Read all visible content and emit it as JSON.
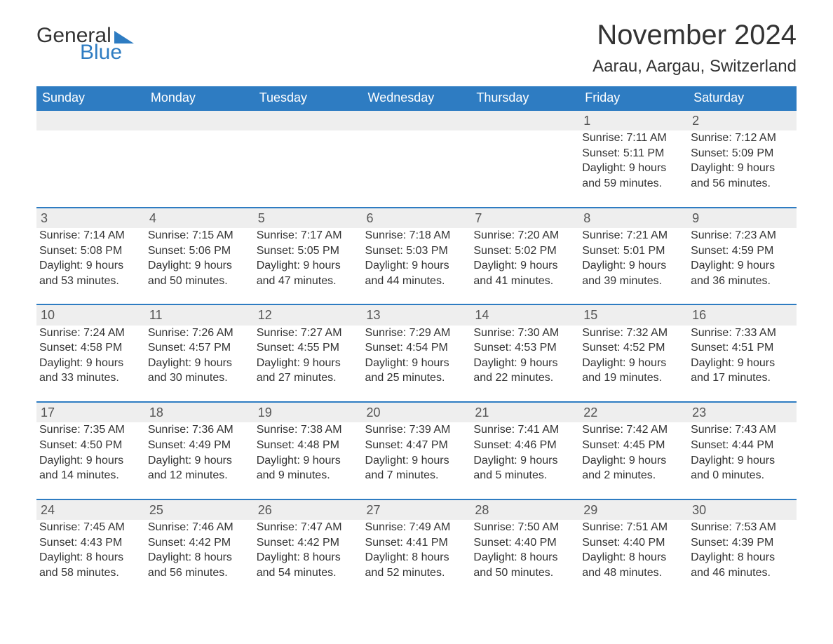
{
  "brand": {
    "part1": "General",
    "part2": "Blue",
    "brand_color": "#2e7cc2"
  },
  "title": "November 2024",
  "location": "Aarau, Aargau, Switzerland",
  "colors": {
    "header_bg": "#2e7cc2",
    "header_text": "#ffffff",
    "daynum_bg": "#eeeeee",
    "page_bg": "#ffffff",
    "text": "#333333",
    "row_border": "#2e7cc2"
  },
  "day_headers": [
    "Sunday",
    "Monday",
    "Tuesday",
    "Wednesday",
    "Thursday",
    "Friday",
    "Saturday"
  ],
  "weeks": [
    [
      null,
      null,
      null,
      null,
      null,
      {
        "n": "1",
        "sunrise": "Sunrise: 7:11 AM",
        "sunset": "Sunset: 5:11 PM",
        "d1": "Daylight: 9 hours",
        "d2": "and 59 minutes."
      },
      {
        "n": "2",
        "sunrise": "Sunrise: 7:12 AM",
        "sunset": "Sunset: 5:09 PM",
        "d1": "Daylight: 9 hours",
        "d2": "and 56 minutes."
      }
    ],
    [
      {
        "n": "3",
        "sunrise": "Sunrise: 7:14 AM",
        "sunset": "Sunset: 5:08 PM",
        "d1": "Daylight: 9 hours",
        "d2": "and 53 minutes."
      },
      {
        "n": "4",
        "sunrise": "Sunrise: 7:15 AM",
        "sunset": "Sunset: 5:06 PM",
        "d1": "Daylight: 9 hours",
        "d2": "and 50 minutes."
      },
      {
        "n": "5",
        "sunrise": "Sunrise: 7:17 AM",
        "sunset": "Sunset: 5:05 PM",
        "d1": "Daylight: 9 hours",
        "d2": "and 47 minutes."
      },
      {
        "n": "6",
        "sunrise": "Sunrise: 7:18 AM",
        "sunset": "Sunset: 5:03 PM",
        "d1": "Daylight: 9 hours",
        "d2": "and 44 minutes."
      },
      {
        "n": "7",
        "sunrise": "Sunrise: 7:20 AM",
        "sunset": "Sunset: 5:02 PM",
        "d1": "Daylight: 9 hours",
        "d2": "and 41 minutes."
      },
      {
        "n": "8",
        "sunrise": "Sunrise: 7:21 AM",
        "sunset": "Sunset: 5:01 PM",
        "d1": "Daylight: 9 hours",
        "d2": "and 39 minutes."
      },
      {
        "n": "9",
        "sunrise": "Sunrise: 7:23 AM",
        "sunset": "Sunset: 4:59 PM",
        "d1": "Daylight: 9 hours",
        "d2": "and 36 minutes."
      }
    ],
    [
      {
        "n": "10",
        "sunrise": "Sunrise: 7:24 AM",
        "sunset": "Sunset: 4:58 PM",
        "d1": "Daylight: 9 hours",
        "d2": "and 33 minutes."
      },
      {
        "n": "11",
        "sunrise": "Sunrise: 7:26 AM",
        "sunset": "Sunset: 4:57 PM",
        "d1": "Daylight: 9 hours",
        "d2": "and 30 minutes."
      },
      {
        "n": "12",
        "sunrise": "Sunrise: 7:27 AM",
        "sunset": "Sunset: 4:55 PM",
        "d1": "Daylight: 9 hours",
        "d2": "and 27 minutes."
      },
      {
        "n": "13",
        "sunrise": "Sunrise: 7:29 AM",
        "sunset": "Sunset: 4:54 PM",
        "d1": "Daylight: 9 hours",
        "d2": "and 25 minutes."
      },
      {
        "n": "14",
        "sunrise": "Sunrise: 7:30 AM",
        "sunset": "Sunset: 4:53 PM",
        "d1": "Daylight: 9 hours",
        "d2": "and 22 minutes."
      },
      {
        "n": "15",
        "sunrise": "Sunrise: 7:32 AM",
        "sunset": "Sunset: 4:52 PM",
        "d1": "Daylight: 9 hours",
        "d2": "and 19 minutes."
      },
      {
        "n": "16",
        "sunrise": "Sunrise: 7:33 AM",
        "sunset": "Sunset: 4:51 PM",
        "d1": "Daylight: 9 hours",
        "d2": "and 17 minutes."
      }
    ],
    [
      {
        "n": "17",
        "sunrise": "Sunrise: 7:35 AM",
        "sunset": "Sunset: 4:50 PM",
        "d1": "Daylight: 9 hours",
        "d2": "and 14 minutes."
      },
      {
        "n": "18",
        "sunrise": "Sunrise: 7:36 AM",
        "sunset": "Sunset: 4:49 PM",
        "d1": "Daylight: 9 hours",
        "d2": "and 12 minutes."
      },
      {
        "n": "19",
        "sunrise": "Sunrise: 7:38 AM",
        "sunset": "Sunset: 4:48 PM",
        "d1": "Daylight: 9 hours",
        "d2": "and 9 minutes."
      },
      {
        "n": "20",
        "sunrise": "Sunrise: 7:39 AM",
        "sunset": "Sunset: 4:47 PM",
        "d1": "Daylight: 9 hours",
        "d2": "and 7 minutes."
      },
      {
        "n": "21",
        "sunrise": "Sunrise: 7:41 AM",
        "sunset": "Sunset: 4:46 PM",
        "d1": "Daylight: 9 hours",
        "d2": "and 5 minutes."
      },
      {
        "n": "22",
        "sunrise": "Sunrise: 7:42 AM",
        "sunset": "Sunset: 4:45 PM",
        "d1": "Daylight: 9 hours",
        "d2": "and 2 minutes."
      },
      {
        "n": "23",
        "sunrise": "Sunrise: 7:43 AM",
        "sunset": "Sunset: 4:44 PM",
        "d1": "Daylight: 9 hours",
        "d2": "and 0 minutes."
      }
    ],
    [
      {
        "n": "24",
        "sunrise": "Sunrise: 7:45 AM",
        "sunset": "Sunset: 4:43 PM",
        "d1": "Daylight: 8 hours",
        "d2": "and 58 minutes."
      },
      {
        "n": "25",
        "sunrise": "Sunrise: 7:46 AM",
        "sunset": "Sunset: 4:42 PM",
        "d1": "Daylight: 8 hours",
        "d2": "and 56 minutes."
      },
      {
        "n": "26",
        "sunrise": "Sunrise: 7:47 AM",
        "sunset": "Sunset: 4:42 PM",
        "d1": "Daylight: 8 hours",
        "d2": "and 54 minutes."
      },
      {
        "n": "27",
        "sunrise": "Sunrise: 7:49 AM",
        "sunset": "Sunset: 4:41 PM",
        "d1": "Daylight: 8 hours",
        "d2": "and 52 minutes."
      },
      {
        "n": "28",
        "sunrise": "Sunrise: 7:50 AM",
        "sunset": "Sunset: 4:40 PM",
        "d1": "Daylight: 8 hours",
        "d2": "and 50 minutes."
      },
      {
        "n": "29",
        "sunrise": "Sunrise: 7:51 AM",
        "sunset": "Sunset: 4:40 PM",
        "d1": "Daylight: 8 hours",
        "d2": "and 48 minutes."
      },
      {
        "n": "30",
        "sunrise": "Sunrise: 7:53 AM",
        "sunset": "Sunset: 4:39 PM",
        "d1": "Daylight: 8 hours",
        "d2": "and 46 minutes."
      }
    ]
  ]
}
